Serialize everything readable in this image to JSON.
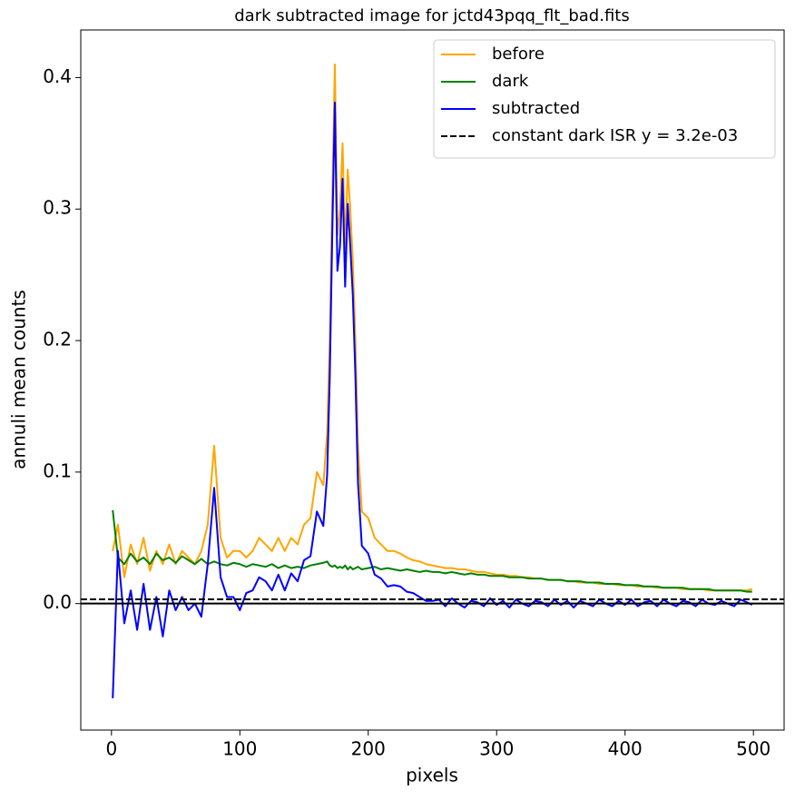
{
  "chart_data": {
    "type": "line",
    "title": "dark subtracted image for jctd43pqq_flt_bad.fits",
    "x_label": "pixels",
    "y_label": "annuli mean counts",
    "xlim": [
      -23.9,
      523.9
    ],
    "ylim": [
      -0.0962,
      0.4362
    ],
    "xticks": [
      0,
      100,
      200,
      300,
      400,
      500
    ],
    "yticks": [
      {
        "value": 0,
        "label": "0.0"
      },
      0.1,
      0.2,
      0.3,
      0.4
    ],
    "legend": "upper right",
    "x": [
      1,
      5,
      10,
      15,
      20,
      25,
      30,
      35,
      40,
      45,
      50,
      55,
      60,
      65,
      70,
      75,
      80,
      85,
      90,
      95,
      100,
      105,
      110,
      115,
      120,
      125,
      130,
      135,
      140,
      145,
      150,
      155,
      160,
      165,
      168,
      170,
      172,
      174,
      176,
      178,
      180,
      182,
      184,
      186,
      188,
      190,
      192,
      195,
      200,
      205,
      210,
      215,
      220,
      225,
      230,
      235,
      240,
      245,
      250,
      255,
      260,
      265,
      270,
      275,
      280,
      285,
      290,
      295,
      300,
      305,
      310,
      315,
      320,
      325,
      330,
      335,
      340,
      345,
      350,
      355,
      360,
      365,
      370,
      375,
      380,
      385,
      390,
      395,
      400,
      405,
      410,
      415,
      420,
      425,
      430,
      435,
      440,
      445,
      450,
      455,
      460,
      465,
      470,
      475,
      480,
      485,
      490,
      495,
      499
    ],
    "series": [
      {
        "name": "before",
        "color": "#ffa500",
        "values": [
          0.04,
          0.06,
          0.02,
          0.045,
          0.03,
          0.05,
          0.025,
          0.04,
          0.03,
          0.045,
          0.03,
          0.04,
          0.035,
          0.03,
          0.04,
          0.06,
          0.12,
          0.05,
          0.035,
          0.04,
          0.04,
          0.035,
          0.04,
          0.05,
          0.045,
          0.04,
          0.05,
          0.04,
          0.05,
          0.045,
          0.06,
          0.065,
          0.1,
          0.09,
          0.13,
          0.2,
          0.31,
          0.41,
          0.28,
          0.3,
          0.35,
          0.27,
          0.33,
          0.3,
          0.26,
          0.2,
          0.12,
          0.07,
          0.065,
          0.05,
          0.045,
          0.04,
          0.04,
          0.038,
          0.035,
          0.033,
          0.032,
          0.03,
          0.029,
          0.028,
          0.027,
          0.027,
          0.026,
          0.026,
          0.025,
          0.024,
          0.024,
          0.023,
          0.022,
          0.022,
          0.021,
          0.021,
          0.02,
          0.02,
          0.019,
          0.019,
          0.018,
          0.018,
          0.018,
          0.017,
          0.017,
          0.016,
          0.016,
          0.016,
          0.015,
          0.015,
          0.015,
          0.014,
          0.014,
          0.014,
          0.013,
          0.013,
          0.013,
          0.012,
          0.012,
          0.012,
          0.012,
          0.011,
          0.011,
          0.011,
          0.011,
          0.01,
          0.01,
          0.01,
          0.01,
          0.01,
          0.01,
          0.01,
          0.011
        ]
      },
      {
        "name": "dark",
        "color": "#008000",
        "values": [
          0.071,
          0.035,
          0.03,
          0.038,
          0.032,
          0.035,
          0.03,
          0.038,
          0.033,
          0.035,
          0.031,
          0.036,
          0.033,
          0.03,
          0.034,
          0.03,
          0.032,
          0.03,
          0.029,
          0.031,
          0.03,
          0.028,
          0.03,
          0.029,
          0.028,
          0.03,
          0.027,
          0.029,
          0.027,
          0.028,
          0.027,
          0.029,
          0.03,
          0.031,
          0.032,
          0.029,
          0.028,
          0.029,
          0.027,
          0.028,
          0.027,
          0.029,
          0.026,
          0.028,
          0.026,
          0.027,
          0.028,
          0.026,
          0.027,
          0.028,
          0.026,
          0.027,
          0.026,
          0.025,
          0.026,
          0.025,
          0.024,
          0.025,
          0.024,
          0.024,
          0.023,
          0.024,
          0.023,
          0.022,
          0.023,
          0.022,
          0.022,
          0.021,
          0.021,
          0.021,
          0.02,
          0.02,
          0.02,
          0.019,
          0.019,
          0.019,
          0.018,
          0.018,
          0.018,
          0.017,
          0.017,
          0.017,
          0.016,
          0.016,
          0.016,
          0.015,
          0.015,
          0.015,
          0.014,
          0.014,
          0.014,
          0.013,
          0.013,
          0.013,
          0.012,
          0.012,
          0.012,
          0.012,
          0.011,
          0.011,
          0.011,
          0.011,
          0.01,
          0.01,
          0.01,
          0.01,
          0.01,
          0.009,
          0.009
        ]
      },
      {
        "name": "subtracted",
        "color": "#0000ff",
        "values": [
          -0.072,
          0.04,
          -0.015,
          0.01,
          -0.02,
          0.015,
          -0.02,
          0.005,
          -0.025,
          0.01,
          -0.005,
          0.005,
          -0.005,
          0.0,
          -0.01,
          0.03,
          0.088,
          0.02,
          0.005,
          0.005,
          -0.005,
          0.008,
          0.01,
          0.02,
          0.017,
          0.01,
          0.022,
          0.01,
          0.023,
          0.017,
          0.033,
          0.036,
          0.07,
          0.059,
          0.098,
          0.171,
          0.282,
          0.381,
          0.253,
          0.272,
          0.323,
          0.241,
          0.304,
          0.272,
          0.234,
          0.173,
          0.092,
          0.044,
          0.038,
          0.022,
          0.019,
          0.013,
          0.014,
          0.013,
          0.009,
          0.008,
          0.005,
          0.002,
          0.002,
          0.003,
          -0.002,
          0.004,
          0.0,
          -0.003,
          0.002,
          0.001,
          -0.002,
          0.004,
          -0.001,
          0.002,
          -0.003,
          0.003,
          0.0,
          -0.002,
          0.002,
          0.001,
          -0.002,
          0.003,
          -0.001,
          0.002,
          -0.003,
          0.002,
          0.0,
          -0.002,
          0.003,
          0.0,
          -0.002,
          0.002,
          -0.001,
          0.003,
          -0.002,
          0.001,
          0.002,
          -0.002,
          0.003,
          0.0,
          -0.002,
          0.002,
          0.001,
          -0.002,
          0.003,
          0.0,
          -0.001,
          0.002,
          0.0,
          -0.002,
          0.003,
          0.001,
          -0.001
        ]
      }
    ],
    "hlines": [
      {
        "y": 0,
        "color": "#000000",
        "dash": false
      },
      {
        "name": "constant dark ISR y = 3.2e-03",
        "y": 0.0032,
        "color": "#000000",
        "dash": true
      }
    ]
  }
}
